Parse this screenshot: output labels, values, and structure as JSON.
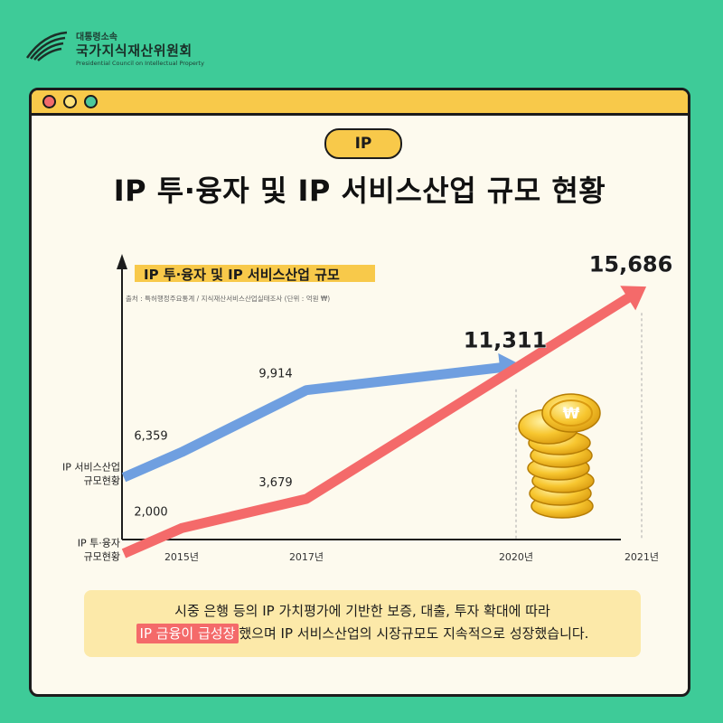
{
  "org": {
    "small": "대통령소속",
    "name": "국가지식재산위원회",
    "english": "Presidential Council on Intellectual Property"
  },
  "tag": "IP",
  "title": "IP 투·융자 및 IP 서비스산업 규모 현황",
  "colors": {
    "background": "#3ecb98",
    "accent": "#f8c94a",
    "service_line": "#6f9fe0",
    "investment_line": "#f46a6a"
  },
  "chart_data": {
    "type": "line",
    "title": "IP 투·융자 및 IP 서비스산업 규모",
    "source": "출처 : 특허행정주요통계 / 지식재산서비스산업실태조사 (단위 : 억원 ₩)",
    "categories": [
      "2015년",
      "2017년",
      "2020년",
      "2021년"
    ],
    "series": [
      {
        "name": "IP 서비스산업 규모현황",
        "label_lines": [
          "IP 서비스산업",
          "규모현황"
        ],
        "values": [
          6359,
          9914,
          11311,
          null
        ],
        "labels": [
          "6,359",
          "9,914",
          "11,311",
          ""
        ]
      },
      {
        "name": "IP 투·융자 규모현황",
        "label_lines": [
          "IP 투·융자",
          "규모현황"
        ],
        "values": [
          2000,
          3679,
          null,
          15686
        ],
        "labels": [
          "2,000",
          "3,679",
          "",
          "15,686"
        ]
      }
    ]
  },
  "note": {
    "line1": "시중 은행 등의 IP 가치평가에 기반한 보증, 대출, 투자 확대에 따라",
    "highlight": "IP 금융이 급성장",
    "line2_rest": "했으며 IP 서비스산업의 시장규모도 지속적으로 성장했습니다."
  }
}
